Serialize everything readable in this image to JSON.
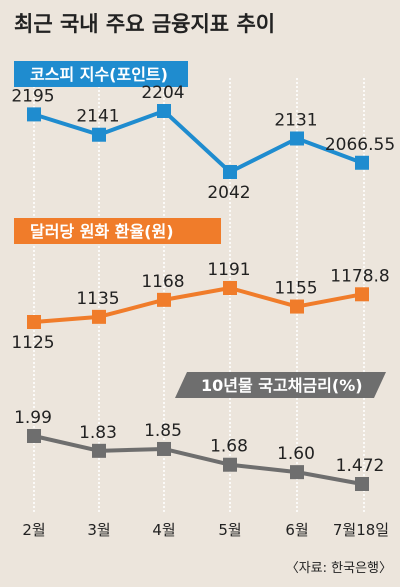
{
  "title": "최근 국내 주요 금융지표 추이",
  "source": "〈자료: 한국은행〉",
  "colors": {
    "kospi": "#1f8ccf",
    "fx": "#f07c2a",
    "bond": "#6e6e6e"
  },
  "chart_data": {
    "type": "line",
    "categories": [
      "2월",
      "3월",
      "4월",
      "5월",
      "6월",
      "7월18일"
    ],
    "series": [
      {
        "name": "코스피 지수(포인트)",
        "values": [
          2195,
          2141,
          2204,
          2042,
          2131,
          2066.55
        ],
        "labels": [
          "2195",
          "2141",
          "2204",
          "2042",
          "2131",
          "2066.55"
        ]
      },
      {
        "name": "달러당 원화 환율(원)",
        "values": [
          1125,
          1135,
          1168,
          1191,
          1155,
          1178.8
        ],
        "labels": [
          "1125",
          "1135",
          "1168",
          "1191",
          "1155",
          "1178.8"
        ]
      },
      {
        "name": "10년물 국고채금리(%)",
        "values": [
          1.99,
          1.83,
          1.85,
          1.68,
          1.6,
          1.472
        ],
        "labels": [
          "1.99",
          "1.83",
          "1.85",
          "1.68",
          "1.60",
          "1.472"
        ]
      }
    ]
  }
}
